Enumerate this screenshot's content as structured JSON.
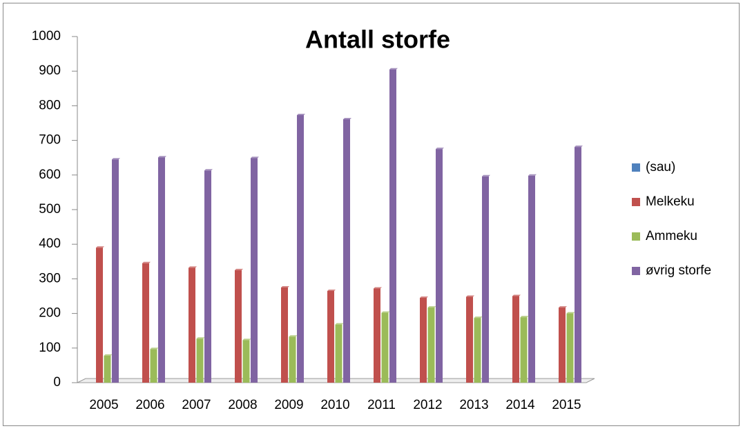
{
  "chart_data": {
    "type": "bar",
    "title": "Antall storfe",
    "categories": [
      "2005",
      "2006",
      "2007",
      "2008",
      "2009",
      "2010",
      "2011",
      "2012",
      "2013",
      "2014",
      "2015"
    ],
    "series": [
      {
        "name": "(sau)",
        "color": "#4f81bd",
        "values": [
          0,
          0,
          0,
          0,
          0,
          0,
          0,
          0,
          0,
          0,
          0
        ]
      },
      {
        "name": "Melkeku",
        "color": "#c0504d",
        "values": [
          390,
          345,
          332,
          325,
          275,
          265,
          272,
          245,
          248,
          250,
          217
        ]
      },
      {
        "name": "Ammeku",
        "color": "#9bbb59",
        "values": [
          78,
          97,
          127,
          123,
          133,
          168,
          202,
          217,
          187,
          189,
          200
        ]
      },
      {
        "name": "øvrig storfe",
        "color": "#8064a2",
        "values": [
          645,
          651,
          613,
          649,
          773,
          761,
          905,
          675,
          596,
          598,
          681
        ]
      }
    ],
    "ylim": [
      0,
      1000
    ],
    "yticks": [
      0,
      100,
      200,
      300,
      400,
      500,
      600,
      700,
      800,
      900,
      1000
    ],
    "legend": "right"
  }
}
